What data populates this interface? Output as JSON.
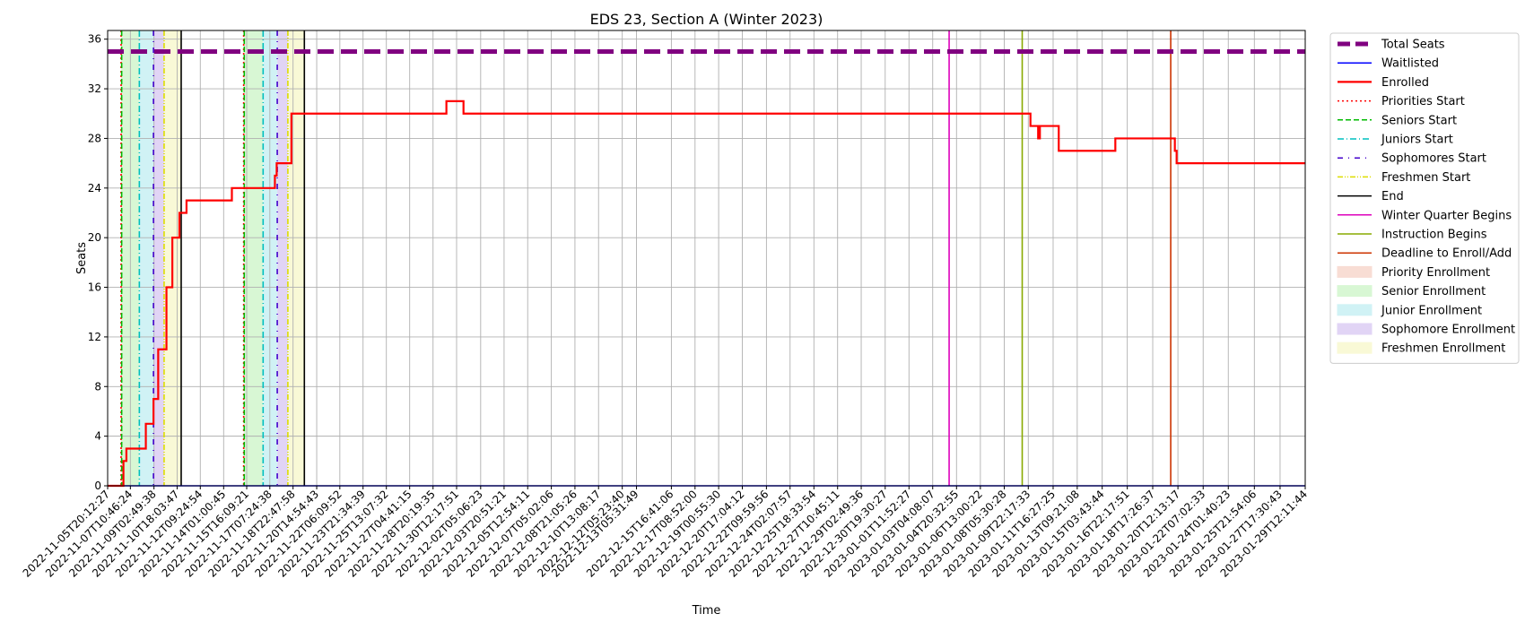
{
  "chart_data": {
    "type": "line",
    "title": "EDS 23, Section A (Winter 2023)",
    "xlabel": "Time",
    "ylabel": "Seats",
    "ylim": [
      0,
      36.7
    ],
    "yticks": [
      0,
      4,
      8,
      12,
      16,
      20,
      24,
      28,
      32,
      36
    ],
    "xlim": [
      "2022-11-05T20:12:27",
      "2023-01-29T12:11:44"
    ],
    "xticks": [
      "2022-11-05T20:12:27",
      "2022-11-07T10:46:24",
      "2022-11-09T02:49:38",
      "2022-11-10T18:03:47",
      "2022-11-12T09:24:54",
      "2022-11-14T01:00:45",
      "2022-11-15T16:09:21",
      "2022-11-17T07:24:38",
      "2022-11-18T22:47:58",
      "2022-11-20T14:54:43",
      "2022-11-22T06:09:52",
      "2022-11-23T21:34:39",
      "2022-11-25T13:07:32",
      "2022-11-27T04:41:15",
      "2022-11-28T20:19:35",
      "2022-11-30T12:17:51",
      "2022-12-02T05:06:23",
      "2022-12-03T20:51:21",
      "2022-12-05T12:54:11",
      "2022-12-07T05:02:06",
      "2022-12-08T21:05:26",
      "2022-12-10T13:08:17",
      "2022-12-12T05:23:40",
      "2022-12-13T05:31:49",
      "2022-12-15T16:41:06",
      "2022-12-17T08:52:00",
      "2022-12-19T00:55:30",
      "2022-12-20T17:04:12",
      "2022-12-22T09:59:56",
      "2022-12-24T02:07:57",
      "2022-12-25T18:33:54",
      "2022-12-27T10:45:11",
      "2022-12-29T02:49:36",
      "2022-12-30T19:30:27",
      "2023-01-01T11:52:27",
      "2023-01-03T04:08:07",
      "2023-01-04T20:32:55",
      "2023-01-06T13:00:22",
      "2023-01-08T05:30:28",
      "2023-01-09T22:17:33",
      "2023-01-11T16:27:25",
      "2023-01-13T09:21:08",
      "2023-01-15T03:43:44",
      "2023-01-16T22:17:51",
      "2023-01-18T17:26:37",
      "2023-01-20T12:13:17",
      "2023-01-22T07:02:33",
      "2023-01-24T01:40:23",
      "2023-01-25T21:54:06",
      "2023-01-27T17:30:43",
      "2023-01-29T12:11:44"
    ],
    "grid": true,
    "legend_placement": "outside-right-top",
    "series": [
      {
        "name": "Total Seats",
        "color": "#800080",
        "style": "dashed-thick",
        "x": [
          "2022-11-05T20:12:27",
          "2023-01-29T12:11:44"
        ],
        "y": [
          35,
          35
        ]
      },
      {
        "name": "Waitlisted",
        "color": "#0000ff",
        "style": "solid-thin",
        "x": [
          "2022-11-05T20:12:27",
          "2023-01-29T12:11:44"
        ],
        "y": [
          0,
          0
        ]
      },
      {
        "name": "Enrolled",
        "color": "#ff0000",
        "style": "step-thick",
        "x": [
          "2022-11-05T20:12:27",
          "2022-11-06T23:00:00",
          "2022-11-07T04:00:00",
          "2022-11-07T10:00:00",
          "2022-11-08T13:00:00",
          "2022-11-09T02:00:00",
          "2022-11-09T10:00:00",
          "2022-11-10T00:00:00",
          "2022-11-10T03:00:00",
          "2022-11-10T10:00:00",
          "2022-11-10T22:00:00",
          "2022-11-11T10:00:00",
          "2022-11-11T14:00:00",
          "2022-11-11T18:00:00",
          "2022-11-11T22:00:00",
          "2022-11-12T06:00:00",
          "2022-11-14T15:00:00",
          "2022-11-17T16:00:00",
          "2022-11-17T19:00:00",
          "2022-11-18T06:00:00",
          "2022-11-18T20:00:00",
          "2022-11-29T19:00:00",
          "2022-12-01T00:00:00",
          "2023-01-10T02:00:00",
          "2023-01-10T15:00:00",
          "2023-01-10T18:00:00",
          "2023-01-12T02:00:00",
          "2023-01-16T02:00:00",
          "2023-01-20T07:00:00",
          "2023-01-20T10:00:00",
          "2023-01-29T12:11:44"
        ],
        "y": [
          0,
          2,
          3,
          3,
          5,
          7,
          11,
          16,
          16,
          20,
          22,
          23,
          23,
          23,
          23,
          23,
          24,
          25,
          26,
          26,
          30,
          31,
          30,
          29,
          28,
          29,
          27,
          28,
          27,
          26,
          26
        ]
      }
    ],
    "vertical_lines": [
      {
        "name": "Priorities Start",
        "color": "#ff0000",
        "style": "dotted",
        "x": [
          "2022-11-06T19:00:00",
          "2022-11-15T11:00:00"
        ]
      },
      {
        "name": "Seniors Start",
        "color": "#00bb00",
        "style": "dashed",
        "x": [
          "2022-11-06T20:00:00",
          "2022-11-15T12:00:00"
        ]
      },
      {
        "name": "Juniors Start",
        "color": "#00bfbf",
        "style": "dashdot",
        "x": [
          "2022-11-08T02:00:00",
          "2022-11-16T20:00:00"
        ]
      },
      {
        "name": "Sophomores Start",
        "color": "#4400cc",
        "style": "loose-dashdot",
        "x": [
          "2022-11-09T02:00:00",
          "2022-11-17T20:00:00"
        ]
      },
      {
        "name": "Freshmen Start",
        "color": "#dddd00",
        "style": "dashdotdot",
        "x": [
          "2022-11-09T20:00:00",
          "2022-11-18T14:00:00"
        ]
      },
      {
        "name": "End",
        "color": "#000000",
        "style": "solid",
        "x": [
          "2022-11-11T01:00:00",
          "2022-11-19T18:00:00"
        ]
      },
      {
        "name": "Winter Quarter Begins",
        "color": "#dd00bb",
        "style": "solid",
        "x": [
          "2023-01-04T08:00:00"
        ]
      },
      {
        "name": "Instruction Begins",
        "color": "#88aa00",
        "style": "solid",
        "x": [
          "2023-01-09T12:00:00"
        ]
      },
      {
        "name": "Deadline to Enroll/Add",
        "color": "#cc3300",
        "style": "solid",
        "x": [
          "2023-01-20T00:00:00"
        ]
      }
    ],
    "spans": [
      {
        "name": "Priority Enrollment",
        "color": "#f8ddd4",
        "ranges": [
          [
            "2022-11-06T19:00:00",
            "2022-11-06T20:00:00"
          ],
          [
            "2022-11-15T11:00:00",
            "2022-11-15T12:00:00"
          ]
        ]
      },
      {
        "name": "Senior Enrollment",
        "color": "#d8f7d4",
        "ranges": [
          [
            "2022-11-06T20:00:00",
            "2022-11-08T02:00:00"
          ],
          [
            "2022-11-15T12:00:00",
            "2022-11-16T20:00:00"
          ]
        ]
      },
      {
        "name": "Junior Enrollment",
        "color": "#d0f2f5",
        "ranges": [
          [
            "2022-11-08T02:00:00",
            "2022-11-09T02:00:00"
          ],
          [
            "2022-11-16T20:00:00",
            "2022-11-17T20:00:00"
          ]
        ]
      },
      {
        "name": "Sophomore Enrollment",
        "color": "#e1d4f5",
        "ranges": [
          [
            "2022-11-09T02:00:00",
            "2022-11-09T20:00:00"
          ],
          [
            "2022-11-17T20:00:00",
            "2022-11-18T14:00:00"
          ]
        ]
      },
      {
        "name": "Freshmen Enrollment",
        "color": "#f9f9d6",
        "ranges": [
          [
            "2022-11-09T20:00:00",
            "2022-11-11T01:00:00"
          ],
          [
            "2022-11-18T14:00:00",
            "2022-11-19T18:00:00"
          ]
        ]
      }
    ]
  }
}
